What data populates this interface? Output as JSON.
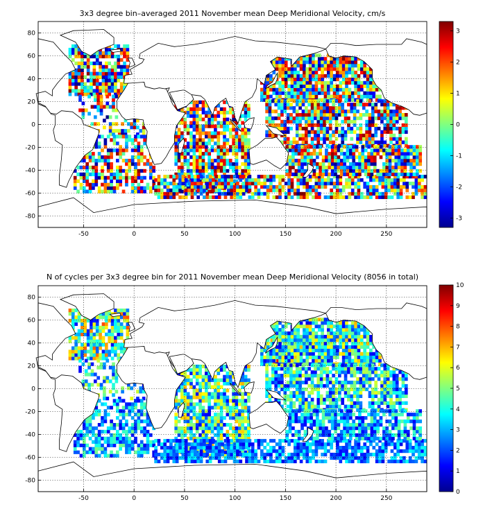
{
  "chart_data": [
    {
      "type": "heatmap",
      "title": "3x3 degree bin–averaged 2011 November mean Deep Meridional Velocity, cm/s",
      "xlabel": "",
      "ylabel": "",
      "xlim": [
        -95,
        290
      ],
      "ylim": [
        -90,
        90
      ],
      "x_ticks": [
        -50,
        0,
        50,
        100,
        150,
        200,
        250
      ],
      "y_ticks": [
        -80,
        -60,
        -40,
        -20,
        0,
        20,
        40,
        60,
        80
      ],
      "grid": true,
      "bin_size_deg": 3,
      "colorbar": {
        "min": -3.3,
        "max": 3.3,
        "ticks": [
          -3,
          -2,
          -1,
          0,
          1,
          2,
          3
        ],
        "colormap": "jet"
      },
      "cells": [
        {
          "region": "North Atlantic",
          "lon_range": [
            -65,
            -5
          ],
          "lat_range": [
            25,
            70
          ],
          "density": 0.8,
          "value_range": [
            -3.3,
            3.3
          ]
        },
        {
          "region": "Tropical Atlantic",
          "lon_range": [
            -55,
            10
          ],
          "lat_range": [
            -10,
            25
          ],
          "density": 0.45,
          "value_range": [
            -3.3,
            3.3
          ]
        },
        {
          "region": "South Atlantic",
          "lon_range": [
            -60,
            20
          ],
          "lat_range": [
            -60,
            -10
          ],
          "density": 0.65,
          "value_range": [
            -3.3,
            3.3
          ]
        },
        {
          "region": "Indian Ocean",
          "lon_range": [
            40,
            115
          ],
          "lat_range": [
            -60,
            20
          ],
          "density": 0.8,
          "value_range": [
            -3.3,
            3.3
          ]
        },
        {
          "region": "Southern Ocean",
          "lon_range": [
            20,
            290
          ],
          "lat_range": [
            -65,
            -45
          ],
          "density": 0.75,
          "value_range": [
            -3.3,
            3.3
          ]
        },
        {
          "region": "North Pacific",
          "lon_range": [
            125,
            245
          ],
          "lat_range": [
            20,
            60
          ],
          "density": 0.9,
          "value_range": [
            -3.3,
            3.3
          ]
        },
        {
          "region": "Tropical Pacific",
          "lon_range": [
            130,
            270
          ],
          "lat_range": [
            -20,
            20
          ],
          "density": 0.75,
          "value_range": [
            -3.3,
            3.3
          ]
        },
        {
          "region": "South Pacific",
          "lon_range": [
            150,
            285
          ],
          "lat_range": [
            -45,
            -20
          ],
          "density": 0.8,
          "value_range": [
            -3.3,
            3.3
          ]
        }
      ]
    },
    {
      "type": "heatmap",
      "title": "N of cycles per 3x3 degree bin for 2011 November mean Deep Meridional Velocity (8056 in total)",
      "xlabel": "",
      "ylabel": "",
      "xlim": [
        -95,
        290
      ],
      "ylim": [
        -90,
        90
      ],
      "x_ticks": [
        -50,
        0,
        50,
        100,
        150,
        200,
        250
      ],
      "y_ticks": [
        -80,
        -60,
        -40,
        -20,
        0,
        20,
        40,
        60,
        80
      ],
      "grid": true,
      "bin_size_deg": 3,
      "total_cycles": 8056,
      "colorbar": {
        "min": 0,
        "max": 10,
        "ticks": [
          0,
          1,
          2,
          3,
          4,
          5,
          6,
          7,
          8,
          9,
          10
        ],
        "colormap": "jet"
      },
      "cells": [
        {
          "region": "North Atlantic",
          "lon_range": [
            -65,
            -5
          ],
          "lat_range": [
            25,
            70
          ],
          "density": 0.8,
          "value_range": [
            1,
            8
          ]
        },
        {
          "region": "Tropical Atlantic",
          "lon_range": [
            -55,
            10
          ],
          "lat_range": [
            -10,
            25
          ],
          "density": 0.45,
          "value_range": [
            1,
            6
          ]
        },
        {
          "region": "South Atlantic",
          "lon_range": [
            -60,
            20
          ],
          "lat_range": [
            -60,
            -10
          ],
          "density": 0.65,
          "value_range": [
            1,
            5
          ]
        },
        {
          "region": "Indian Ocean",
          "lon_range": [
            40,
            115
          ],
          "lat_range": [
            -60,
            20
          ],
          "density": 0.8,
          "value_range": [
            1,
            7
          ]
        },
        {
          "region": "Southern Ocean",
          "lon_range": [
            20,
            290
          ],
          "lat_range": [
            -65,
            -45
          ],
          "density": 0.75,
          "value_range": [
            1,
            4
          ]
        },
        {
          "region": "Kuroshio",
          "lon_range": [
            135,
            165
          ],
          "lat_range": [
            20,
            45
          ],
          "density": 0.95,
          "value_range": [
            4,
            10
          ]
        },
        {
          "region": "North Pacific",
          "lon_range": [
            125,
            245
          ],
          "lat_range": [
            20,
            60
          ],
          "density": 0.9,
          "value_range": [
            1,
            7
          ]
        },
        {
          "region": "Tropical Pacific",
          "lon_range": [
            130,
            270
          ],
          "lat_range": [
            -20,
            20
          ],
          "density": 0.75,
          "value_range": [
            1,
            6
          ]
        },
        {
          "region": "South Pacific",
          "lon_range": [
            150,
            285
          ],
          "lat_range": [
            -45,
            -20
          ],
          "density": 0.8,
          "value_range": [
            1,
            5
          ]
        }
      ]
    }
  ]
}
